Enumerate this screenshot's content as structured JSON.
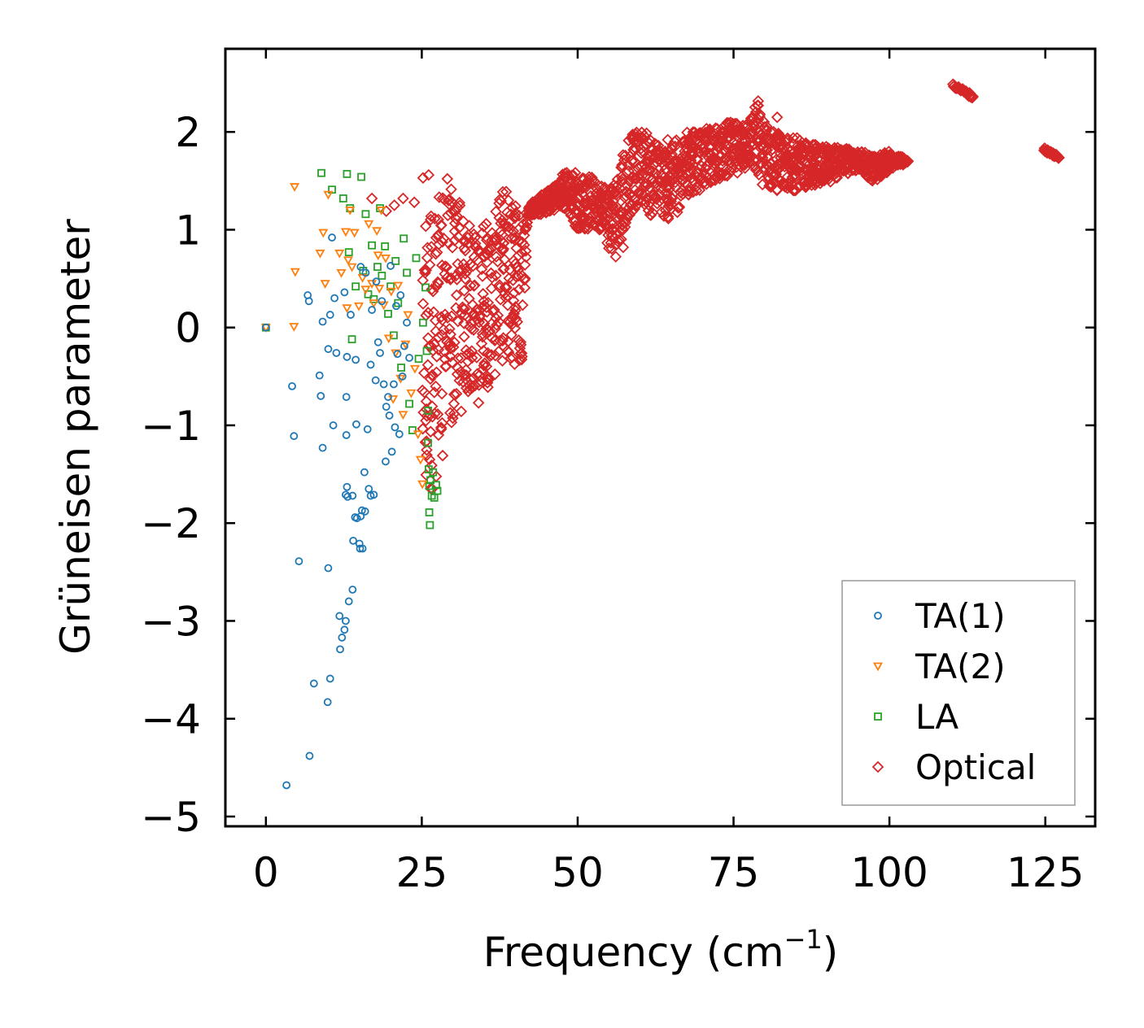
{
  "chart_data": {
    "type": "scatter",
    "title": "",
    "xlabel": "Frequency (cm",
    "xlabel_superscript": "−1",
    "xlabel_suffix": ")",
    "ylabel": "Grüneisen parameter",
    "xlim": [
      -6.5,
      133
    ],
    "ylim": [
      -5.1,
      2.85
    ],
    "xticks": [
      0,
      25,
      50,
      75,
      100,
      125
    ],
    "xtick_labels": [
      "0",
      "25",
      "50",
      "75",
      "100",
      "125"
    ],
    "yticks": [
      -5,
      -4,
      -3,
      -2,
      -1,
      0,
      1,
      2
    ],
    "ytick_labels": [
      "−5",
      "−4",
      "−3",
      "−2",
      "−1",
      "0",
      "1",
      "2"
    ],
    "grid": false,
    "legend_position": "bottom-right",
    "series": [
      {
        "name": "TA(1)",
        "color": "#1f77b4",
        "marker": "circle",
        "points": [
          [
            0,
            0
          ],
          [
            3.3,
            -4.68
          ],
          [
            4.2,
            -0.6
          ],
          [
            4.5,
            -1.11
          ],
          [
            5.3,
            -2.39
          ],
          [
            6.7,
            0.33
          ],
          [
            6.9,
            0.27
          ],
          [
            7,
            -4.38
          ],
          [
            7.7,
            -3.64
          ],
          [
            8.6,
            -0.49
          ],
          [
            8.8,
            -0.7
          ],
          [
            9.1,
            -1.23
          ],
          [
            9.1,
            0.06
          ],
          [
            9.9,
            -3.83
          ],
          [
            10,
            -2.46
          ],
          [
            10,
            -0.22
          ],
          [
            10.3,
            0.13
          ],
          [
            10.3,
            -3.59
          ],
          [
            10.6,
            0.92
          ],
          [
            10.8,
            -1
          ],
          [
            11,
            0.3
          ],
          [
            11.3,
            -0.26
          ],
          [
            11.8,
            -2.95
          ],
          [
            11.9,
            -3.29
          ],
          [
            12.2,
            -3.17
          ],
          [
            12.6,
            0.36
          ],
          [
            12.6,
            -3.09
          ],
          [
            12.8,
            -3
          ],
          [
            12.8,
            -1.71
          ],
          [
            12.9,
            -0.71
          ],
          [
            12.9,
            -1.1
          ],
          [
            13,
            -0.3
          ],
          [
            13,
            -1.63
          ],
          [
            13.1,
            -1.73
          ],
          [
            13.3,
            -2.8
          ],
          [
            13.6,
            0.13
          ],
          [
            13.9,
            -1.72
          ],
          [
            13.9,
            -2.68
          ],
          [
            14,
            -2.18
          ],
          [
            14.3,
            -1.94
          ],
          [
            14.4,
            -0.33
          ],
          [
            14.5,
            -0.99
          ],
          [
            14.6,
            -1.95
          ],
          [
            15,
            -2.21
          ],
          [
            15.1,
            -2.26
          ],
          [
            15.2,
            -1.93
          ],
          [
            15.2,
            0.62
          ],
          [
            15.4,
            -1.87
          ],
          [
            15.5,
            -2.26
          ],
          [
            15.8,
            -1.48
          ],
          [
            15.9,
            -1.88
          ],
          [
            16,
            0.56
          ],
          [
            16.3,
            -1.04
          ],
          [
            16.5,
            -1.65
          ],
          [
            16.8,
            -0.38
          ],
          [
            16.8,
            -1.72
          ],
          [
            17,
            0.18
          ],
          [
            17.3,
            -1.71
          ],
          [
            17.6,
            -0.54
          ],
          [
            17.7,
            0.47
          ],
          [
            18,
            -0.15
          ],
          [
            18.3,
            -0.26
          ],
          [
            18.6,
            0.27
          ],
          [
            18.9,
            -0.58
          ],
          [
            19.2,
            -1.37
          ],
          [
            19.3,
            -0.81
          ],
          [
            19.6,
            -0.71
          ],
          [
            19.8,
            -0.9
          ],
          [
            20,
            0.63
          ],
          [
            20.2,
            -1.27
          ],
          [
            20.5,
            -0.58
          ],
          [
            20.7,
            -1.02
          ],
          [
            20.9,
            0.22
          ],
          [
            21.1,
            -0.27
          ],
          [
            21.4,
            -1.09
          ],
          [
            21.6,
            0.33
          ],
          [
            21.9,
            -0.5
          ],
          [
            22.2,
            -0.19
          ],
          [
            22.6,
            0.05
          ],
          [
            23,
            -0.31
          ]
        ]
      },
      {
        "name": "TA(2)",
        "color": "#ff7f0e",
        "marker": "triangle-down",
        "points": [
          [
            0,
            0
          ],
          [
            4.5,
            0.01
          ],
          [
            4.6,
            1.44
          ],
          [
            4.7,
            0.57
          ],
          [
            8.7,
            0.76
          ],
          [
            9.2,
            0.97
          ],
          [
            9.5,
            0.45
          ],
          [
            10,
            1.36
          ],
          [
            11.8,
            0.76
          ],
          [
            12.1,
            0.56
          ],
          [
            12.8,
            0.98
          ],
          [
            13,
            0.2
          ],
          [
            13.2,
            0.69
          ],
          [
            13.5,
            1.2
          ],
          [
            13.8,
            0.62
          ],
          [
            14.2,
            0.97
          ],
          [
            14.9,
            0.22
          ],
          [
            15.5,
            0.51
          ],
          [
            16,
            0.39
          ],
          [
            16.5,
            1.06
          ],
          [
            17,
            0.45
          ],
          [
            17.3,
            0.25
          ],
          [
            17.8,
            0.99
          ],
          [
            18,
            0.74
          ],
          [
            18.2,
            0.4
          ],
          [
            18.5,
            1.2
          ],
          [
            18.9,
            0.23
          ],
          [
            19.2,
            0.71
          ],
          [
            19.7,
            -0.11
          ],
          [
            20.1,
            0.37
          ],
          [
            20.4,
            -0.73
          ],
          [
            20.8,
            -0.26
          ],
          [
            21.2,
            0.43
          ],
          [
            21.6,
            -0.52
          ],
          [
            22,
            -0.89
          ],
          [
            22.4,
            -0.17
          ],
          [
            22.8,
            0.13
          ],
          [
            23.3,
            -0.67
          ],
          [
            23.9,
            -0.42
          ],
          [
            24.4,
            -1.09
          ],
          [
            24.8,
            -1.35
          ],
          [
            25.1,
            -1.6
          ]
        ]
      },
      {
        "name": "LA",
        "color": "#2ca02c",
        "marker": "square",
        "points": [
          [
            0,
            0
          ],
          [
            8.9,
            1.58
          ],
          [
            10.6,
            1.41
          ],
          [
            12.4,
            1.32
          ],
          [
            13,
            1.57
          ],
          [
            13.3,
            0.77
          ],
          [
            13.5,
            1.22
          ],
          [
            13.8,
            -0.12
          ],
          [
            14.4,
            0.42
          ],
          [
            15.3,
            1.54
          ],
          [
            15.6,
            0.58
          ],
          [
            16,
            1.16
          ],
          [
            16.4,
            0.34
          ],
          [
            17,
            0.84
          ],
          [
            17.3,
            0.29
          ],
          [
            17.9,
            0.62
          ],
          [
            18.3,
            1.22
          ],
          [
            18.6,
            0.53
          ],
          [
            19.1,
            0.83
          ],
          [
            19.6,
            0.14
          ],
          [
            20,
            0.42
          ],
          [
            20.5,
            -0.08
          ],
          [
            20.8,
            0.68
          ],
          [
            21.2,
            0.25
          ],
          [
            21.7,
            -0.41
          ],
          [
            22.1,
            0.91
          ],
          [
            22.6,
            0.56
          ],
          [
            23,
            -0.78
          ],
          [
            23.5,
            -1.05
          ],
          [
            24.1,
            0.71
          ],
          [
            24.5,
            -0.32
          ],
          [
            25.2,
            0.05
          ],
          [
            25.6,
            0.41
          ],
          [
            25.8,
            -0.24
          ],
          [
            26,
            -0.85
          ],
          [
            26,
            -1.18
          ],
          [
            26.1,
            -1.45
          ],
          [
            26.2,
            -1.62
          ],
          [
            26.2,
            -1.89
          ],
          [
            26.3,
            -2.02
          ],
          [
            26.4,
            -1.56
          ],
          [
            26.6,
            -1.72
          ],
          [
            26.8,
            -1.48
          ],
          [
            27,
            -1.74
          ],
          [
            27.3,
            -1.61
          ],
          [
            27.5,
            -1.67
          ]
        ]
      },
      {
        "name": "Optical",
        "color": "#d62728",
        "marker": "diamond",
        "envelope": {
          "x": [
            25,
            26,
            27,
            28,
            29,
            30,
            31,
            32,
            33,
            34,
            35,
            36,
            37,
            38,
            39,
            40,
            41,
            42,
            43,
            44,
            45,
            46,
            47,
            48,
            49,
            50,
            51,
            52,
            53,
            54,
            55,
            56,
            57,
            58,
            59,
            60,
            61,
            62,
            63,
            64,
            65,
            66,
            67,
            68,
            69,
            70,
            71,
            72,
            73,
            74,
            75,
            76,
            77,
            78,
            79,
            80,
            81,
            82,
            83,
            84,
            85,
            86,
            87,
            88,
            89,
            90,
            91,
            92,
            93,
            94,
            95,
            96,
            97,
            98,
            99,
            100,
            101,
            102,
            103
          ],
          "low": [
            -1.9,
            -1.8,
            -1.6,
            -1.4,
            -1.2,
            -1.0,
            -0.9,
            -0.8,
            -0.7,
            -0.6,
            -0.6,
            -0.55,
            -0.5,
            -0.35,
            -0.35,
            -0.4,
            -0.45,
            1.15,
            1.15,
            1.15,
            1.15,
            1.2,
            1.2,
            1.2,
            1.1,
            1.0,
            1.0,
            1.0,
            1.0,
            1.0,
            0.8,
            0.7,
            0.9,
            1.1,
            1.2,
            1.3,
            1.2,
            1.1,
            1.1,
            1.1,
            1.1,
            1.1,
            1.3,
            1.35,
            1.4,
            1.4,
            1.45,
            1.5,
            1.5,
            1.55,
            1.55,
            1.6,
            1.6,
            1.65,
            1.45,
            1.45,
            1.4,
            1.4,
            1.4,
            1.4,
            1.4,
            1.4,
            1.45,
            1.45,
            1.45,
            1.45,
            1.5,
            1.55,
            1.55,
            1.6,
            1.6,
            1.55,
            1.5,
            1.5,
            1.55,
            1.6,
            1.65,
            1.65,
            1.7
          ],
          "high": [
            0.7,
            1.25,
            1.3,
            1.35,
            1.4,
            1.45,
            1.3,
            1.2,
            1.0,
            1.05,
            1.1,
            1.1,
            1.2,
            1.45,
            1.45,
            1.4,
            1.15,
            1.25,
            1.3,
            1.35,
            1.4,
            1.45,
            1.55,
            1.6,
            1.6,
            1.6,
            1.55,
            1.55,
            1.5,
            1.5,
            1.45,
            1.55,
            1.75,
            1.9,
            2.0,
            2.05,
            2.0,
            1.95,
            1.9,
            1.9,
            1.95,
            1.95,
            2.0,
            2.0,
            2.0,
            2.0,
            2.05,
            2.05,
            2.05,
            2.1,
            2.1,
            2.1,
            2.15,
            2.2,
            2.35,
            2.1,
            2.05,
            2.0,
            1.95,
            1.95,
            1.95,
            1.9,
            1.9,
            1.9,
            1.85,
            1.85,
            1.85,
            1.85,
            1.85,
            1.8,
            1.8,
            1.8,
            1.75,
            1.75,
            1.8,
            1.8,
            1.75,
            1.75,
            1.7
          ]
        },
        "clusters": [
          {
            "x_start": 110.2,
            "x_end": 113.4,
            "y_start": 2.48,
            "y_end": 2.36
          },
          {
            "x_start": 124.8,
            "x_end": 127.2,
            "y_start": 1.82,
            "y_end": 1.74
          }
        ],
        "outliers": [
          [
            17,
            1.32
          ],
          [
            19.3,
            1.19
          ],
          [
            20.6,
            1.25
          ],
          [
            22,
            1.32
          ],
          [
            23.8,
            1.28
          ],
          [
            25.2,
            1.53
          ],
          [
            26.1,
            1.56
          ],
          [
            29.1,
            1.52
          ],
          [
            29.4,
            1.31
          ],
          [
            30.4,
            1.19
          ],
          [
            31,
            1.02
          ],
          [
            32.4,
            0.92
          ],
          [
            33.6,
            0.86
          ],
          [
            35.5,
            0.79
          ],
          [
            37.4,
            1.27
          ],
          [
            38.1,
            0.86
          ],
          [
            40,
            1.14
          ],
          [
            31.8,
            -0.48
          ],
          [
            33.2,
            -0.6
          ],
          [
            34.1,
            -0.77
          ],
          [
            35.6,
            -0.61
          ],
          [
            82,
            2.15
          ],
          [
            98.5,
            1.58
          ],
          [
            57.3,
            0.82
          ]
        ]
      }
    ]
  }
}
